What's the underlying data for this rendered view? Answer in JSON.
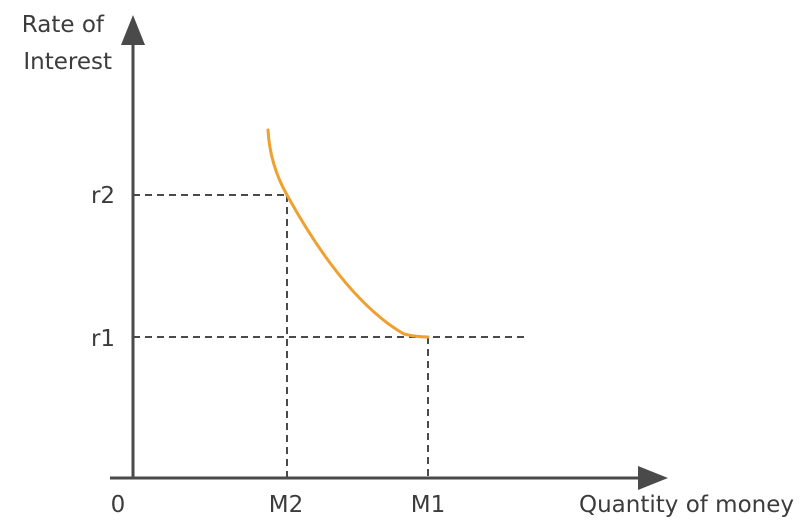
{
  "diagram": {
    "y_axis_label_lines": [
      "Rate of",
      "Interest"
    ],
    "x_axis_label": "Quantity of money",
    "origin_label": "0",
    "y_ticks": [
      {
        "label": "r2",
        "level": "high"
      },
      {
        "label": "r1",
        "level": "low"
      }
    ],
    "x_ticks": [
      {
        "label": "M2",
        "order": 1
      },
      {
        "label": "M1",
        "order": 2
      }
    ],
    "curve": {
      "description_points": [
        {
          "from": "top",
          "to": "r2/M2"
        },
        {
          "from": "r2/M2",
          "to": "r1/M1"
        }
      ]
    },
    "colors": {
      "axis": "#4a4a4a",
      "curve": "#f0a030",
      "guides": "#4a4a4a",
      "text": "#3c3c3c"
    }
  }
}
